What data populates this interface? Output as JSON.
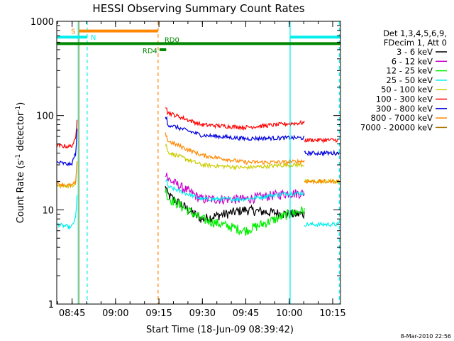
{
  "chart_data": {
    "type": "line",
    "title": "HESSI Observing Summary Count Rates",
    "xlabel": "Start Time (18-Jun-09 08:39:42)",
    "ylabel_main": "Count Rate (s",
    "ylabel_sup1": "-1",
    "ylabel_mid": " detector",
    "ylabel_sup2": "-1",
    "ylabel_end": ")",
    "y_scale": "log",
    "ylim": [
      1,
      1000
    ],
    "xlim_minutes": [
      0,
      98
    ],
    "x_ticks": [
      {
        "m": 5.3,
        "label": "08:45"
      },
      {
        "m": 20.3,
        "label": "09:00"
      },
      {
        "m": 35.3,
        "label": "09:15"
      },
      {
        "m": 50.3,
        "label": "09:30"
      },
      {
        "m": 65.3,
        "label": "09:45"
      },
      {
        "m": 80.3,
        "label": "10:00"
      },
      {
        "m": 95.3,
        "label": "10:15"
      }
    ],
    "y_ticks": [
      {
        "v": 1,
        "label": "1"
      },
      {
        "v": 10,
        "label": "10"
      },
      {
        "v": 100,
        "label": "100"
      },
      {
        "v": 1000,
        "label": "1000"
      }
    ],
    "legend_header": [
      "Det 1,3,4,5,6,9,",
      "FDecim 1, Att 0"
    ],
    "series": [
      {
        "name": "3 - 6 keV",
        "color": "#000000",
        "pre": [
          null,
          null,
          null
        ],
        "post": [
          15,
          8,
          10,
          9,
          9
        ]
      },
      {
        "name": "6 - 12 keV",
        "color": "#cc00cc",
        "pre": [
          null,
          null,
          null
        ],
        "post": [
          22,
          13,
          13,
          15,
          15
        ]
      },
      {
        "name": "12 - 25 keV",
        "color": "#00ee00",
        "pre": [
          null,
          null,
          null
        ],
        "post": [
          14,
          8,
          6,
          9,
          10
        ]
      },
      {
        "name": "25 - 50 keV",
        "color": "#00eeee",
        "pre": [
          7,
          6.5,
          9
        ],
        "post": [
          18,
          13,
          13,
          15,
          15
        ],
        "after": 7
      },
      {
        "name": "50 - 100 keV",
        "color": "#cccc00",
        "pre": [
          18,
          18,
          20
        ],
        "post": [
          42,
          30,
          28,
          30,
          30
        ],
        "after": 20
      },
      {
        "name": "100 - 300 keV",
        "color": "#ff0000",
        "pre": [
          48,
          47,
          60
        ],
        "post": [
          110,
          80,
          75,
          82,
          84
        ],
        "after": 55
      },
      {
        "name": "300 - 800 keV",
        "color": "#0000dd",
        "pre": [
          32,
          30,
          45
        ],
        "post": [
          82,
          62,
          57,
          58,
          58
        ],
        "after": 40
      },
      {
        "name": "800 - 7000 keV",
        "color": "#ff8800",
        "pre": [
          19,
          18,
          20
        ],
        "post": [
          55,
          38,
          32,
          32,
          33
        ],
        "after": 20
      },
      {
        "name": "7000 - 20000 keV",
        "color": "#aa7700",
        "pre": [
          null,
          null,
          null
        ],
        "post": [
          null,
          null,
          null,
          null,
          null
        ]
      }
    ],
    "annotations": [
      {
        "label": "S",
        "color": "#ff8800",
        "bar_minutes": [
          7.7,
          35.0
        ],
        "y": 790
      },
      {
        "label": "N",
        "color": "#00eeee",
        "bar_minutes": [
          0,
          10.5
        ],
        "y": 680,
        "bar2_minutes": [
          80.7,
          98
        ],
        "y2": 680
      },
      {
        "label": "RD0",
        "color": "#008800",
        "bar_minutes": [
          0,
          98
        ],
        "y": 580
      },
      {
        "label": "RD4",
        "color": "#008800",
        "bar_minutes": [
          35.5,
          37.8
        ],
        "y": 500
      }
    ],
    "vlines": [
      {
        "m": 7.7,
        "color": "#ff8800",
        "style": "solid"
      },
      {
        "m": 7.4,
        "color": "#00eeee",
        "style": "solid"
      },
      {
        "m": 10.5,
        "color": "#00eeee",
        "style": "dash"
      },
      {
        "m": 35.0,
        "color": "#ff8800",
        "style": "dash"
      },
      {
        "m": 80.6,
        "color": "#00eeee",
        "style": "solid"
      },
      {
        "m": 97.6,
        "color": "#00eeee",
        "style": "dash"
      }
    ],
    "footer_stamp": "8-Mar-2010 22:56"
  }
}
